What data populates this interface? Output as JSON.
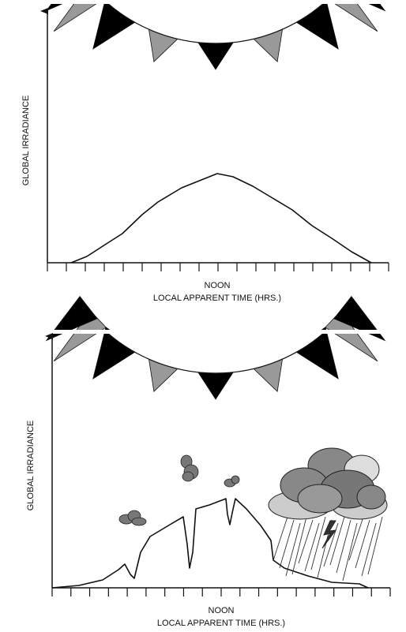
{
  "panels": [
    {
      "y_axis_label": "GLOBAL IRRADIANCE",
      "x_tick_label": "NOON",
      "x_axis_label": "LOCAL APPARENT TIME  (HRS.)"
    },
    {
      "y_axis_label": "GLOBAL IRRADIANCE",
      "x_tick_label": "NOON",
      "x_axis_label": "LOCAL APPARENT TIME  (HRS.)"
    }
  ]
}
